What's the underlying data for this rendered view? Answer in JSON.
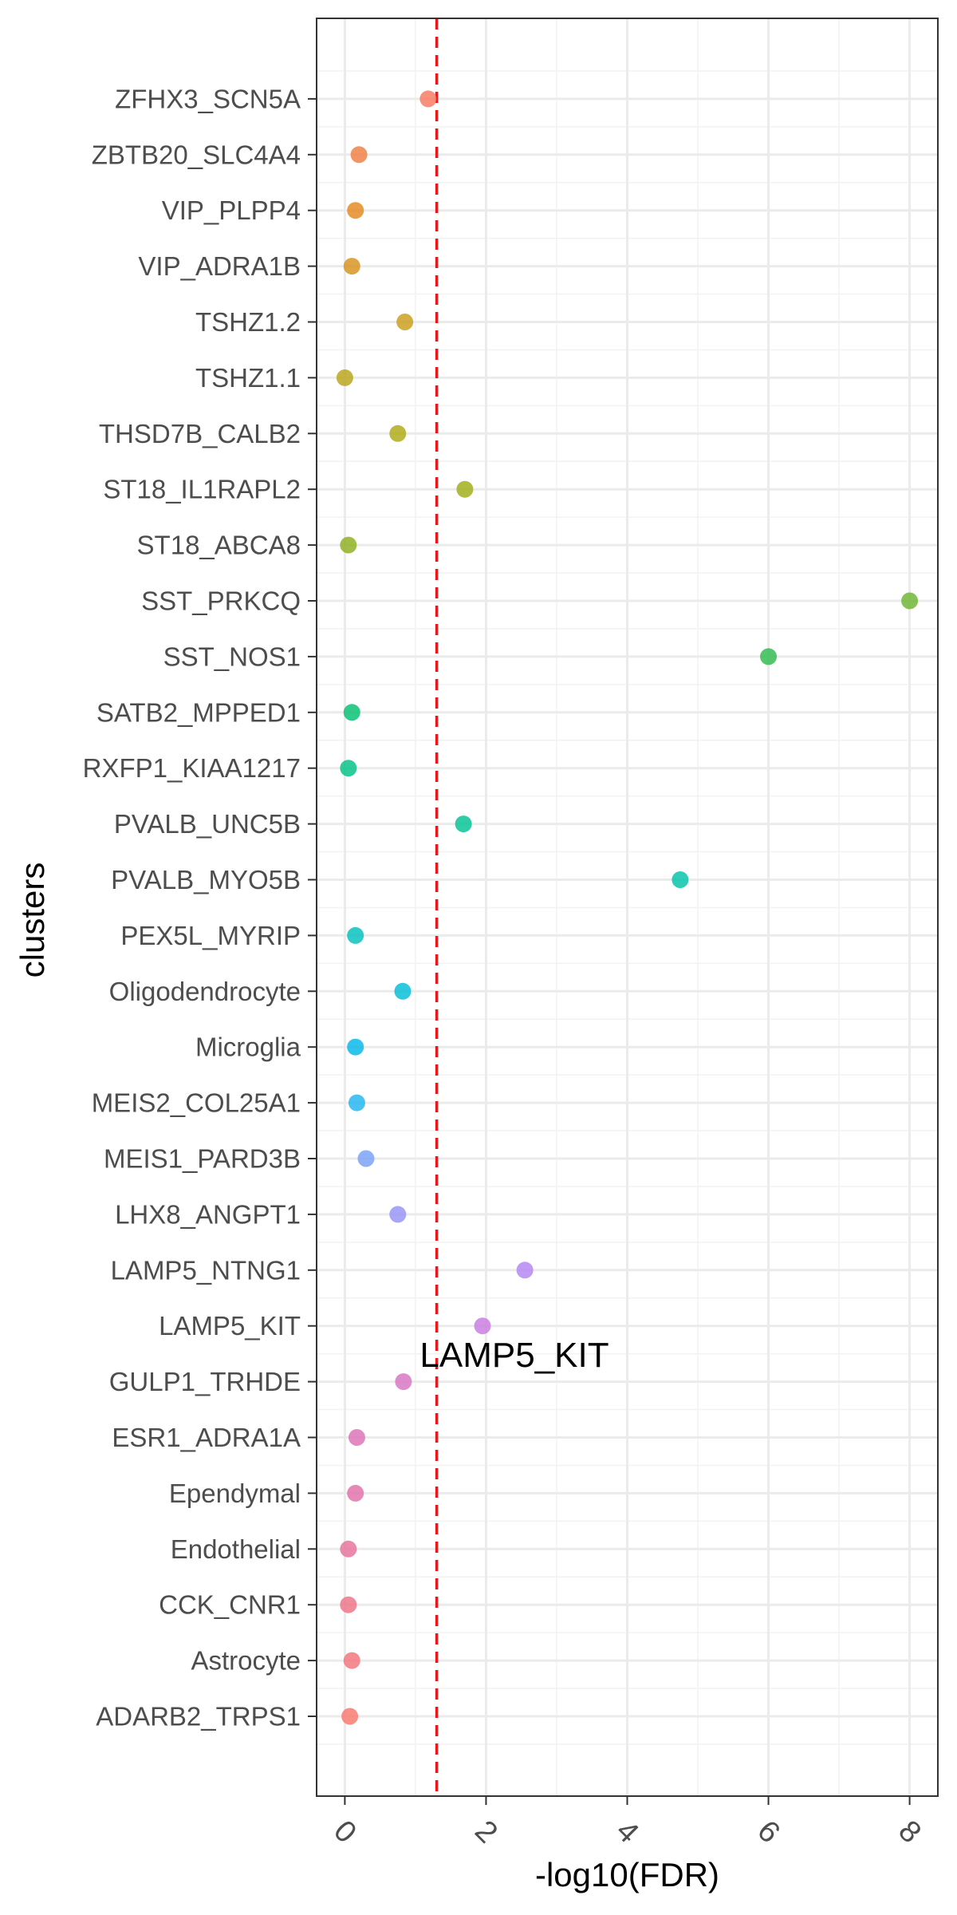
{
  "chart_data": {
    "type": "scatter",
    "xlabel": "-log10(FDR)",
    "ylabel": "clusters",
    "xlim": [
      -0.4,
      8.4
    ],
    "xticks": [
      0,
      2,
      4,
      6,
      8
    ],
    "threshold": {
      "value": 1.301,
      "style": "dashed",
      "color": "#e41a1c"
    },
    "grid": true,
    "legend": "none",
    "points": [
      {
        "cluster": "ZFHX3_SCN5A",
        "value": 1.18,
        "color": "#f8766d"
      },
      {
        "cluster": "ZBTB20_SLC4A4",
        "value": 0.2,
        "color": "#f8766d"
      },
      {
        "cluster": "VIP_PLPP4",
        "value": 0.15,
        "color": "#f8766d"
      },
      {
        "cluster": "VIP_ADRA1B",
        "value": 0.1,
        "color": "#f8766d"
      },
      {
        "cluster": "TSHZ1.2",
        "value": 0.85,
        "color": "#f8766d"
      },
      {
        "cluster": "TSHZ1.1",
        "value": 0.0,
        "color": "#f8766d"
      },
      {
        "cluster": "THSD7B_CALB2",
        "value": 0.75,
        "color": "#f8766d"
      },
      {
        "cluster": "ST18_IL1RAPL2",
        "value": 1.7,
        "color": "#f8766d"
      },
      {
        "cluster": "ST18_ABCA8",
        "value": 0.05,
        "color": "#f8766d"
      },
      {
        "cluster": "SST_PRKCQ",
        "value": 8.0,
        "color": "#f8766d"
      },
      {
        "cluster": "SST_NOS1",
        "value": 6.0,
        "color": "#f8766d"
      },
      {
        "cluster": "SATB2_MPPED1",
        "value": 0.1,
        "color": "#f8766d"
      },
      {
        "cluster": "RXFP1_KIAA1217",
        "value": 0.05,
        "color": "#f8766d"
      },
      {
        "cluster": "PVALB_UNC5B",
        "value": 1.68,
        "color": "#f8766d"
      },
      {
        "cluster": "PVALB_MYO5B",
        "value": 4.75,
        "color": "#f8766d"
      },
      {
        "cluster": "PEX5L_MYRIP",
        "value": 0.15,
        "color": "#f8766d"
      },
      {
        "cluster": "Oligodendrocyte",
        "value": 0.82,
        "color": "#f8766d"
      },
      {
        "cluster": "Microglia",
        "value": 0.15,
        "color": "#f8766d"
      },
      {
        "cluster": "MEIS2_COL25A1",
        "value": 0.17,
        "color": "#f8766d"
      },
      {
        "cluster": "MEIS1_PARD3B",
        "value": 0.3,
        "color": "#f8766d"
      },
      {
        "cluster": "LHX8_ANGPT1",
        "value": 0.75,
        "color": "#f8766d"
      },
      {
        "cluster": "LAMP5_NTNG1",
        "value": 2.55,
        "color": "#f8766d"
      },
      {
        "cluster": "LAMP5_KIT",
        "value": 1.95,
        "color": "#f8766d"
      },
      {
        "cluster": "GULP1_TRHDE",
        "value": 0.83,
        "color": "#f8766d"
      },
      {
        "cluster": "ESR1_ADRA1A",
        "value": 0.17,
        "color": "#f8766d"
      },
      {
        "cluster": "Ependymal",
        "value": 0.15,
        "color": "#f8766d"
      },
      {
        "cluster": "Endothelial",
        "value": 0.05,
        "color": "#f8766d"
      },
      {
        "cluster": "CCK_CNR1",
        "value": 0.05,
        "color": "#f8766d"
      },
      {
        "cluster": "Astrocyte",
        "value": 0.1,
        "color": "#f8766d"
      },
      {
        "cluster": "ADARB2_TRPS1",
        "value": 0.07,
        "color": "#f8766d"
      }
    ],
    "point_colors": [
      "#f8766d",
      "#f3737a",
      "#ee7186",
      "#e8709b",
      "#e26fa8",
      "#dc70b6",
      "#d873c4",
      "#c87be0",
      "#b284f3",
      "#9691f5",
      "#77a0f7",
      "#1fb4f0",
      "#00b7ea",
      "#00bcd8",
      "#00c0c0",
      "#00c2a8",
      "#00c294",
      "#00c184",
      "#00bf70",
      "#2eba4a",
      "#6bb530",
      "#8daf1c",
      "#a0ac14",
      "#afa914",
      "#baa417",
      "#c89c1a",
      "#d5911b",
      "#e3871d",
      "#ef7e40",
      "#f7775f"
    ],
    "annotations": [
      {
        "text": "LAMP5_KIT",
        "cluster": "LAMP5_KIT",
        "value": 1.95
      }
    ]
  }
}
